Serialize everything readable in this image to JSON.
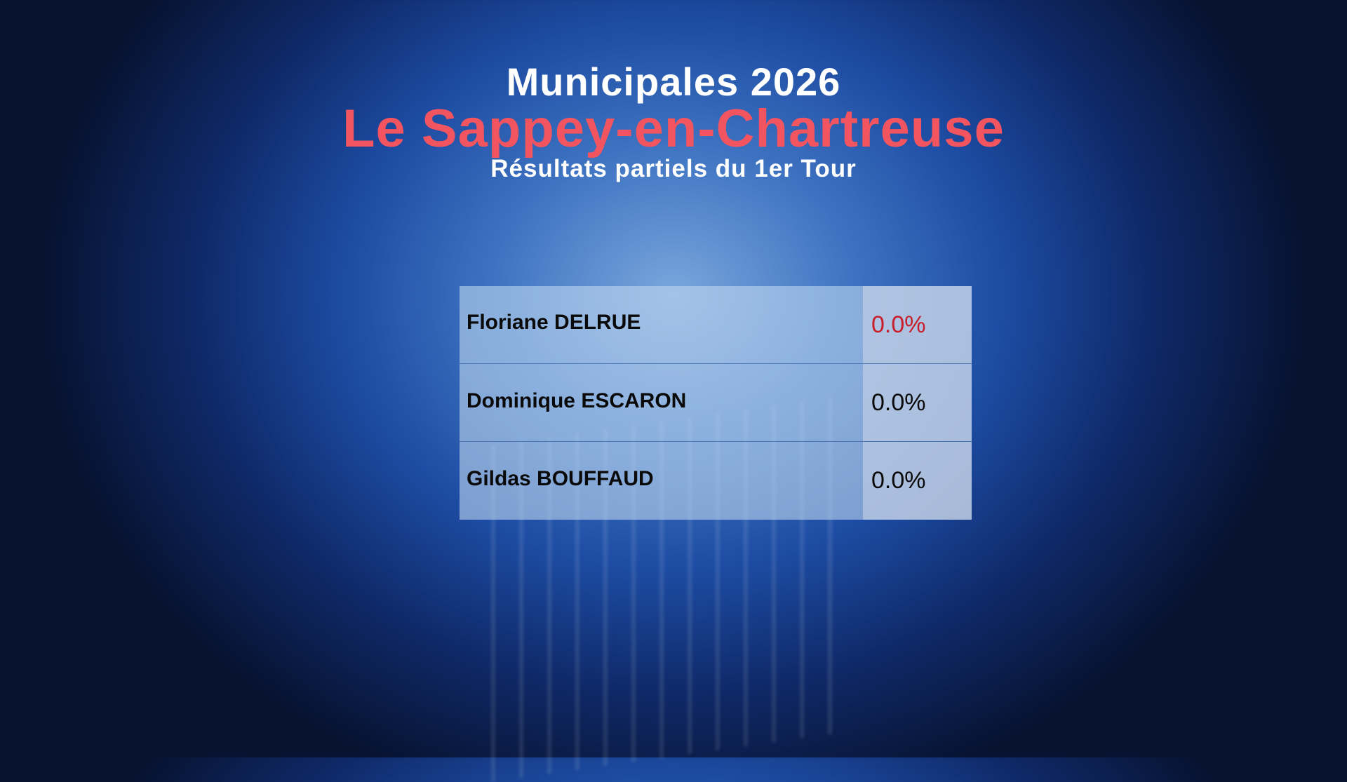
{
  "header": {
    "title": "Municipales 2026",
    "commune": "Le Sappey-en-Chartreuse",
    "subtitle": "Résultats partiels du 1er Tour"
  },
  "results": [
    {
      "name": "Floriane DELRUE",
      "percent": "0.0%",
      "leading": true
    },
    {
      "name": "Dominique ESCARON",
      "percent": "0.0%"
    },
    {
      "name": "Gildas BOUFFAUD",
      "percent": "0.0%"
    }
  ],
  "colors": {
    "commune": "#f25560",
    "leading_percent": "#c81e2c",
    "background": "#1d4ca3"
  }
}
